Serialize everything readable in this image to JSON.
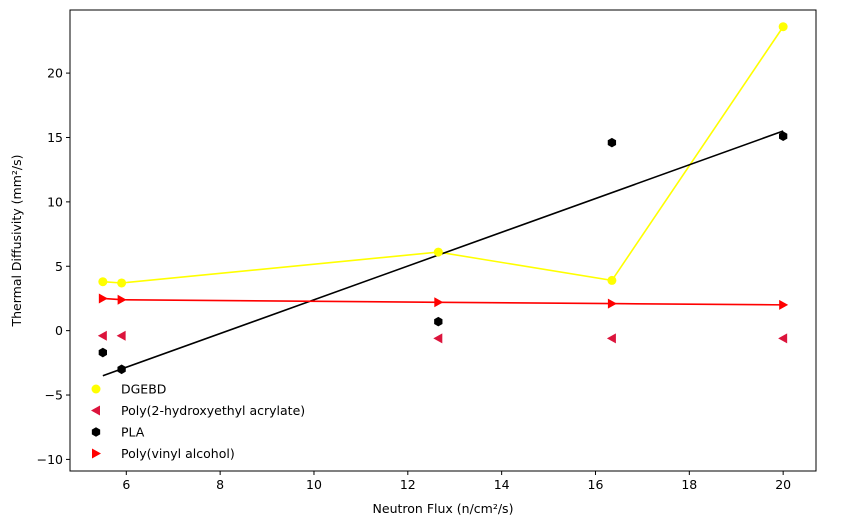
{
  "chart_data": {
    "type": "scatter",
    "title": "",
    "xlabel": "Neutron Flux (n/cm²/s)",
    "ylabel": "Thermal Diffusivity (mm²/s)",
    "xlim": [
      4.8,
      20.7
    ],
    "ylim": [
      -10.9,
      24.9
    ],
    "xticks": [
      6,
      8,
      10,
      12,
      14,
      16,
      18,
      20
    ],
    "yticks": [
      -10,
      -5,
      0,
      5,
      10,
      15,
      20
    ],
    "xtick_labels": [
      "6",
      "8",
      "10",
      "12",
      "14",
      "16",
      "18",
      "20"
    ],
    "ytick_labels": [
      "−10",
      "−5",
      "0",
      "5",
      "10",
      "15",
      "20"
    ],
    "grid": false,
    "legend_position": "lower-left",
    "series": [
      {
        "name": "DGEBD",
        "color": "#ffff00",
        "marker": "circle",
        "x": [
          5.5,
          5.9,
          12.65,
          16.35,
          20.0
        ],
        "y": [
          3.8,
          3.7,
          6.1,
          3.9,
          23.6
        ],
        "line": {
          "x": [
            5.5,
            5.9,
            12.65,
            16.35,
            20.0
          ],
          "y": [
            3.8,
            3.7,
            6.1,
            3.9,
            23.6
          ]
        }
      },
      {
        "name": "Poly(2-hydroxyethyl acrylate)",
        "color": "#dc143c",
        "marker": "triangle-left",
        "x": [
          5.5,
          5.9,
          12.65,
          16.35,
          20.0
        ],
        "y": [
          -0.4,
          -0.4,
          -0.6,
          -0.6,
          -0.6
        ]
      },
      {
        "name": "PLA",
        "color": "#000000",
        "marker": "hexagon",
        "x": [
          5.5,
          5.9,
          12.65,
          16.35,
          20.0
        ],
        "y": [
          -1.7,
          -3.0,
          0.7,
          14.6,
          15.1
        ],
        "line": {
          "x": [
            5.5,
            20.0
          ],
          "y": [
            -3.5,
            15.5
          ]
        }
      },
      {
        "name": "Poly(vinyl alcohol)",
        "color": "#ff0000",
        "marker": "triangle-right",
        "x": [
          5.5,
          5.9,
          12.65,
          16.35,
          20.0
        ],
        "y": [
          2.5,
          2.4,
          2.2,
          2.1,
          2.0
        ],
        "line": {
          "x": [
            5.5,
            5.9,
            12.65,
            16.35,
            20.0
          ],
          "y": [
            2.5,
            2.4,
            2.2,
            2.1,
            2.0
          ]
        }
      }
    ]
  }
}
